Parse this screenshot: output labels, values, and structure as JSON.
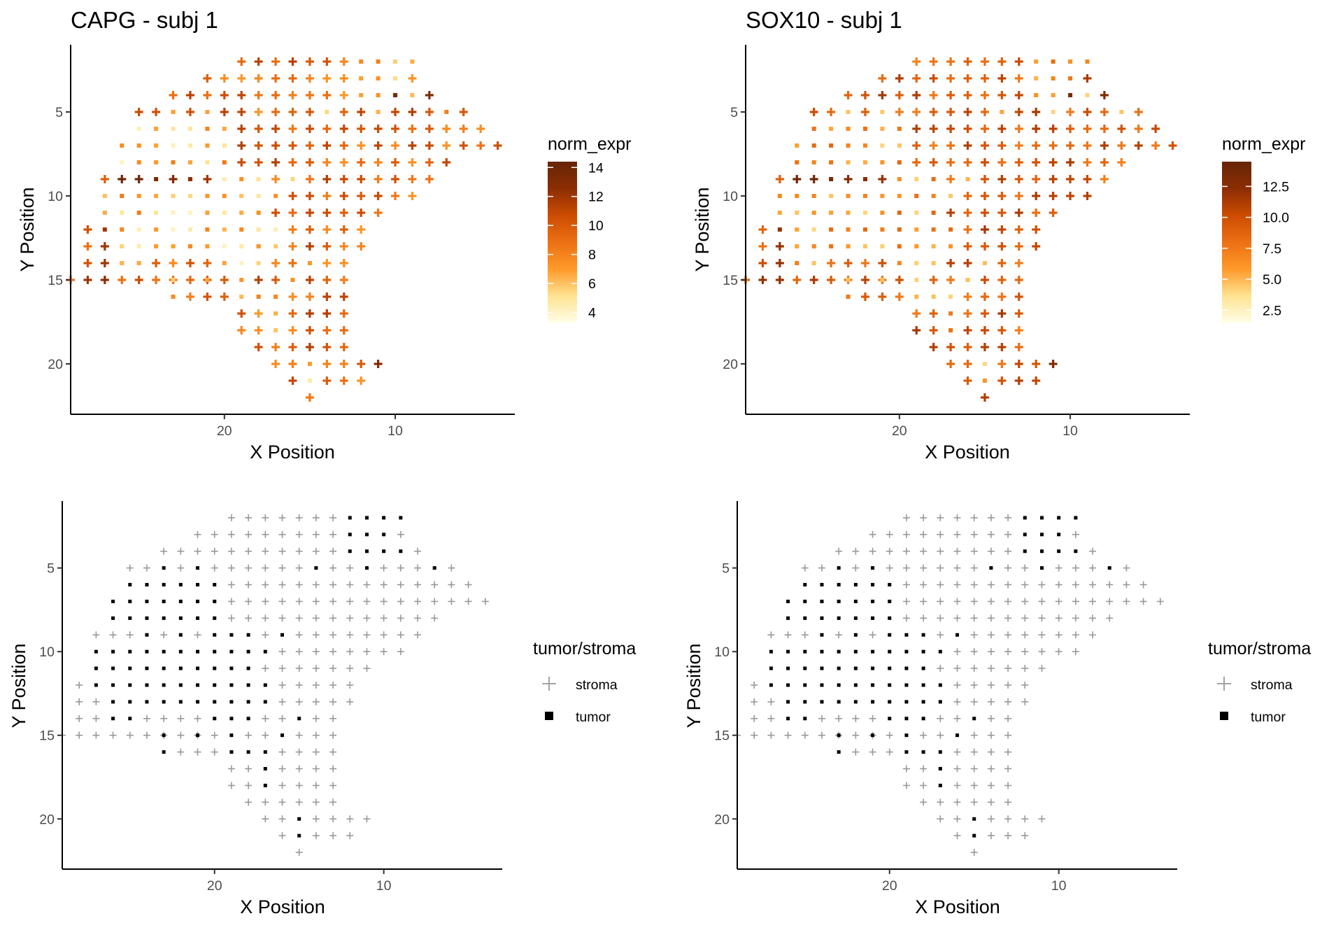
{
  "figure": {
    "panels": [
      {
        "id": "capg",
        "title": "CAPG - subj 1",
        "xlabel": "X Position",
        "ylabel": "Y Position",
        "legend": {
          "title": "norm_expr",
          "type": "colorbar",
          "min": 3.3,
          "max": 14.4,
          "ticks": [
            "4",
            "6",
            "8",
            "10",
            "12",
            "14"
          ],
          "tick_values": [
            4,
            6,
            8,
            10,
            12,
            14
          ]
        }
      },
      {
        "id": "sox10",
        "title": "SOX10 - subj 1",
        "xlabel": "X Position",
        "ylabel": "Y Position",
        "legend": {
          "title": "norm_expr",
          "type": "colorbar",
          "min": 1.5,
          "max": 14.5,
          "ticks": [
            "12.5",
            "10.0",
            "7.5",
            "5.0",
            "2.5"
          ],
          "tick_values": [
            12.5,
            10,
            7.5,
            5,
            2.5
          ]
        }
      },
      {
        "id": "ts1",
        "title": "",
        "xlabel": "X Position",
        "ylabel": "Y Position",
        "legend": {
          "title": "tumor/stroma",
          "type": "shape",
          "items": [
            "stroma",
            "tumor"
          ]
        }
      },
      {
        "id": "ts2",
        "title": "",
        "xlabel": "X Position",
        "ylabel": "Y Position",
        "legend": {
          "title": "tumor/stroma",
          "type": "shape",
          "items": [
            "stroma",
            "tumor"
          ]
        }
      }
    ]
  },
  "chart_data": {
    "type": "scatter",
    "description_axes": {
      "x_ticks": [
        "20",
        "10"
      ],
      "x_tick_values": [
        20,
        10
      ],
      "y_ticks": [
        "5",
        "10",
        "15",
        "20"
      ],
      "y_tick_values": [
        5,
        10,
        15,
        20
      ],
      "x_reversed": true,
      "y_reversed": true,
      "xlim": [
        29,
        3
      ],
      "ylim": [
        1,
        23
      ]
    },
    "colors": {
      "stroma": "#999999",
      "tumor": "#000000",
      "colorbar": [
        "#fffde6",
        "#fee391",
        "#fe9929",
        "#ec7014",
        "#cc4c02",
        "#8c2d04",
        "#662506"
      ]
    },
    "spots_by_row": [
      {
        "y": 2,
        "stroma": [
          19,
          18,
          17,
          16,
          15,
          14,
          13
        ],
        "tumor": [
          12,
          11,
          10,
          9
        ]
      },
      {
        "y": 3,
        "stroma": [
          21,
          20,
          19,
          18,
          17,
          16,
          15,
          14,
          13,
          9
        ],
        "tumor": [
          12,
          11,
          10
        ]
      },
      {
        "y": 4,
        "stroma": [
          23,
          22,
          21,
          20,
          19,
          18,
          17,
          16,
          15,
          14,
          13,
          8
        ],
        "tumor": [
          12,
          11,
          10,
          9
        ]
      },
      {
        "y": 5,
        "stroma": [
          25,
          24,
          22,
          20,
          19,
          18,
          17,
          16,
          15,
          13,
          12,
          10,
          9,
          8,
          6
        ],
        "tumor": [
          23,
          21,
          14,
          11,
          7
        ]
      },
      {
        "y": 6,
        "stroma": [
          19,
          18,
          17,
          16,
          15,
          14,
          13,
          12,
          11,
          10,
          9,
          8,
          7,
          6,
          5
        ],
        "tumor": [
          25,
          24,
          23,
          22,
          21,
          20
        ]
      },
      {
        "y": 7,
        "stroma": [
          19,
          18,
          17,
          16,
          15,
          14,
          13,
          12,
          11,
          10,
          9,
          8,
          7,
          6,
          5,
          4
        ],
        "tumor": [
          26,
          25,
          24,
          23,
          22,
          21,
          20
        ]
      },
      {
        "y": 8,
        "stroma": [
          19,
          18,
          17,
          16,
          15,
          14,
          13,
          12,
          11,
          10,
          9,
          8,
          7
        ],
        "tumor": [
          26,
          25,
          24,
          23,
          22,
          21,
          20
        ]
      },
      {
        "y": 9,
        "stroma": [
          27,
          26,
          25,
          23,
          21,
          17,
          15,
          14,
          13,
          12,
          11,
          10,
          9,
          8
        ],
        "tumor": [
          24,
          22,
          20,
          19,
          18,
          16
        ]
      },
      {
        "y": 10,
        "stroma": [
          16,
          15,
          14,
          13,
          12,
          11,
          10,
          9
        ],
        "tumor": [
          27,
          26,
          25,
          24,
          23,
          22,
          21,
          20,
          19,
          18,
          17
        ]
      },
      {
        "y": 11,
        "stroma": [
          17,
          16,
          15,
          14,
          13,
          12,
          11
        ],
        "tumor": [
          27,
          26,
          25,
          24,
          23,
          22,
          21,
          20,
          19,
          18
        ]
      },
      {
        "y": 12,
        "stroma": [
          28,
          16,
          15,
          14,
          13,
          12
        ],
        "tumor": [
          27,
          26,
          25,
          24,
          23,
          22,
          21,
          20,
          19,
          18,
          17
        ]
      },
      {
        "y": 13,
        "stroma": [
          28,
          27,
          16,
          15,
          14,
          13,
          12
        ],
        "tumor": [
          26,
          25,
          24,
          23,
          22,
          21,
          20,
          19,
          18,
          17
        ]
      },
      {
        "y": 14,
        "stroma": [
          28,
          27,
          24,
          23,
          22,
          21,
          17,
          16,
          14,
          13
        ],
        "tumor": [
          26,
          25,
          20,
          19,
          18,
          15
        ]
      },
      {
        "y": 15,
        "stroma": [
          29,
          28,
          27,
          26,
          25,
          24,
          23,
          22,
          21,
          20,
          18,
          17,
          15,
          14,
          13
        ],
        "tumor": [
          23,
          21,
          19,
          16
        ]
      },
      {
        "y": 16,
        "stroma": [
          22,
          21,
          20,
          16,
          15,
          14,
          13
        ],
        "tumor": [
          23,
          19,
          18,
          17
        ]
      },
      {
        "y": 17,
        "stroma": [
          19,
          18,
          16,
          15,
          14,
          13
        ],
        "tumor": [
          17
        ]
      },
      {
        "y": 18,
        "stroma": [
          19,
          18,
          16,
          15,
          14,
          13
        ],
        "tumor": [
          17
        ]
      },
      {
        "y": 19,
        "stroma": [
          18,
          17,
          16,
          15,
          14,
          13
        ],
        "tumor": []
      },
      {
        "y": 20,
        "stroma": [
          17,
          16,
          14,
          13,
          12,
          11
        ],
        "tumor": [
          15
        ]
      },
      {
        "y": 21,
        "stroma": [
          16,
          14,
          13,
          12
        ],
        "tumor": [
          15
        ]
      },
      {
        "y": 22,
        "stroma": [
          15
        ],
        "tumor": []
      }
    ],
    "expression_note_values": {
      "capg_high": [
        [
          26,
          9,
          14.2
        ],
        [
          25,
          9,
          14.0
        ],
        [
          24,
          9,
          13.5
        ],
        [
          23,
          9,
          13.0
        ],
        [
          22,
          9,
          12.5
        ],
        [
          21,
          9,
          12.0
        ],
        [
          28,
          15,
          12.0
        ],
        [
          27,
          15,
          12.5
        ],
        [
          27,
          12,
          12.0
        ],
        [
          27,
          13,
          12.0
        ],
        [
          27,
          14,
          12.0
        ],
        [
          11,
          20,
          13.0
        ],
        [
          10,
          4,
          13.5
        ],
        [
          8,
          4,
          13.0
        ]
      ],
      "sox10_high": [
        [
          26,
          9,
          14.0
        ],
        [
          25,
          9,
          14.0
        ],
        [
          24,
          9,
          13.5
        ],
        [
          23,
          9,
          13.0
        ],
        [
          22,
          9,
          12.5
        ],
        [
          21,
          9,
          12.0
        ],
        [
          28,
          15,
          12.0
        ],
        [
          27,
          15,
          12.0
        ],
        [
          27,
          12,
          12.0
        ],
        [
          27,
          13,
          12.0
        ],
        [
          27,
          14,
          12.0
        ],
        [
          11,
          20,
          13.0
        ],
        [
          10,
          4,
          13.5
        ],
        [
          8,
          4,
          13.0
        ]
      ]
    }
  }
}
